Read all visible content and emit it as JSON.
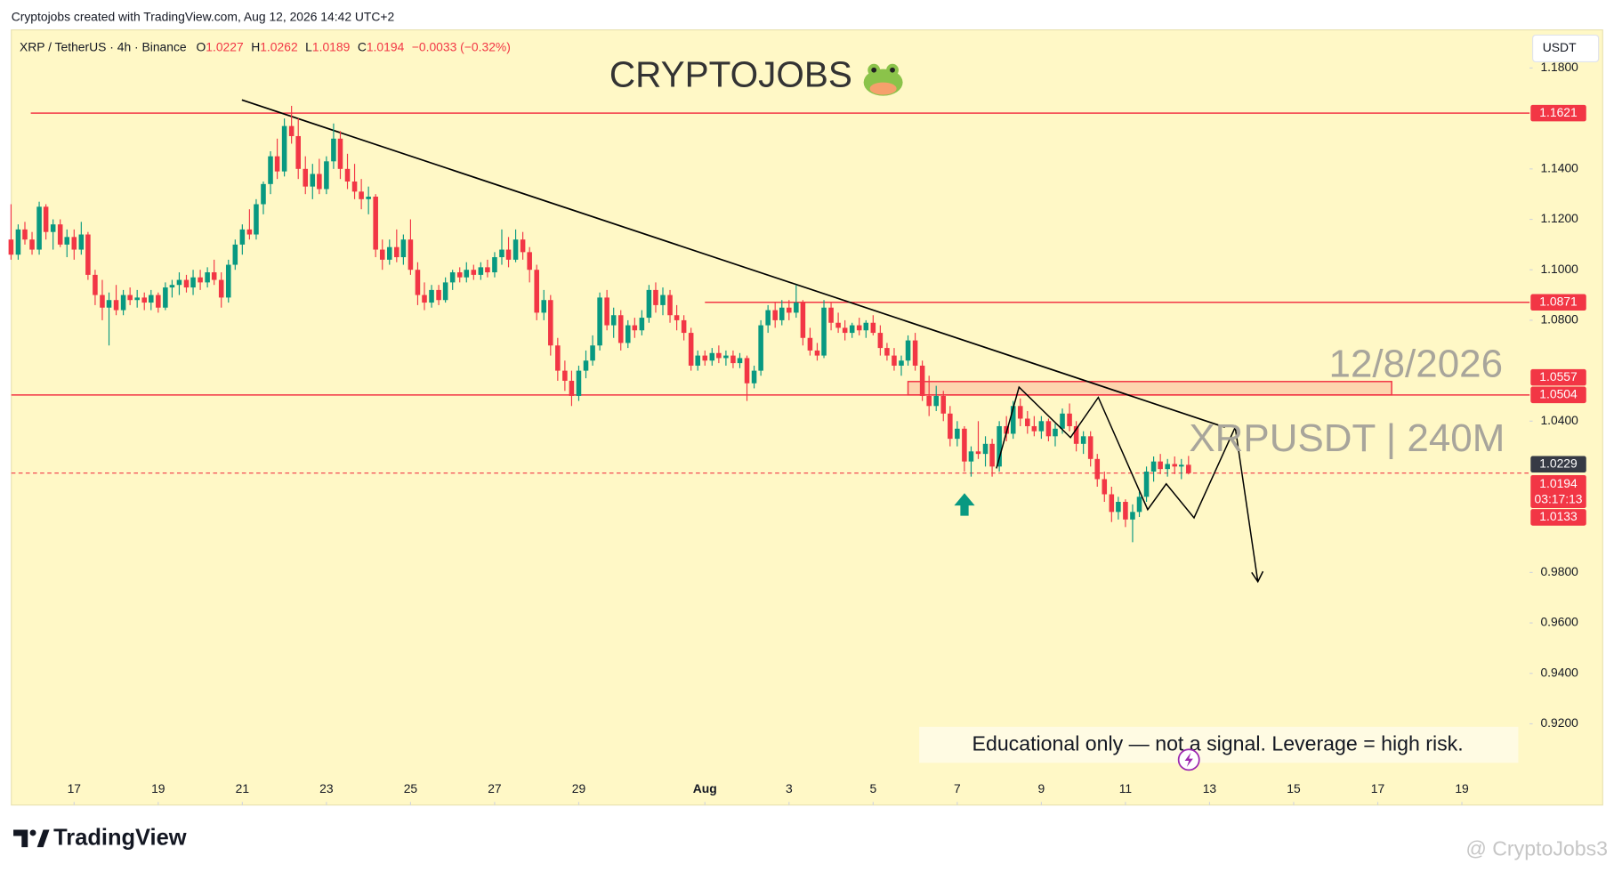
{
  "credit": "Cryptojobs created with TradingView.com, Aug 12, 2026 14:42 UTC+2",
  "brand": "TradingView",
  "watermark_user": "@ CryptoJobs3",
  "chart_data": {
    "type": "candlestick",
    "title": "CRYPTOJOBS",
    "date_watermark": "12/8/2026",
    "symbol_watermark": "XRPUSDT | 240M",
    "disclaimer": "Educational only — not a signal. Leverage  = high risk.",
    "symbol": "XRP / TetherUS · 4h · Binance",
    "ohlc_letters": [
      "O",
      "H",
      "L",
      "C"
    ],
    "change": "−0.0033 (−0.32%)",
    "currency": "USDT",
    "countdown": "03:17:13",
    "up_color": "#089981",
    "down_color": "#f23645",
    "level_color": "#f23645",
    "grid": false,
    "xlim": [
      15.507,
      51.61
    ],
    "ylim": [
      0.8878,
      1.1947
    ],
    "xticks": [
      17,
      19,
      21,
      23,
      25,
      27,
      29,
      {
        "value": 32,
        "label": "Aug"
      },
      {
        "value": 34,
        "label": "3"
      },
      {
        "value": 36,
        "label": "5"
      },
      {
        "value": 38,
        "label": "7"
      },
      {
        "value": 40,
        "label": "9"
      },
      {
        "value": 42,
        "label": "11"
      },
      {
        "value": 44,
        "label": "13"
      },
      {
        "value": 46,
        "label": "15"
      },
      {
        "value": 48,
        "label": "17"
      },
      {
        "value": 50,
        "label": "19"
      }
    ],
    "yticks": [
      {
        "value": 1.18,
        "label": "1.1800"
      },
      {
        "value": 1.14,
        "label": "1.1400"
      },
      {
        "value": 1.12,
        "label": "1.1200"
      },
      {
        "value": 1.1,
        "label": "1.1000"
      },
      {
        "value": 1.08,
        "label": "1.0800"
      },
      {
        "value": 1.04,
        "label": "1.0400"
      },
      {
        "value": 0.98,
        "label": "0.9800"
      },
      {
        "value": 0.96,
        "label": "0.9600"
      },
      {
        "value": 0.94,
        "label": "0.9400"
      },
      {
        "value": 0.92,
        "label": "0.9200"
      }
    ],
    "levels": [
      {
        "value": 1.1621,
        "start": 15.97
      },
      {
        "value": 1.0871,
        "start": 32
      },
      {
        "value": 1.0504
      }
    ],
    "zone": {
      "top": 1.0557,
      "start": 36.83,
      "end": 48.33
    },
    "markers": [
      {
        "value": 1.0229,
        "color": "#363a45"
      },
      {
        "value": 1.0133,
        "color": "#f23645"
      }
    ],
    "x": [
      15.5,
      15.67,
      15.83,
      16,
      16.17,
      16.33,
      16.5,
      16.67,
      16.83,
      17,
      17.17,
      17.33,
      17.5,
      17.67,
      17.83,
      18,
      18.17,
      18.33,
      18.5,
      18.67,
      18.83,
      19,
      19.17,
      19.33,
      19.5,
      19.67,
      19.83,
      20,
      20.17,
      20.33,
      20.5,
      20.67,
      20.83,
      21,
      21.17,
      21.33,
      21.5,
      21.67,
      21.83,
      22,
      22.17,
      22.33,
      22.5,
      22.67,
      22.83,
      23,
      23.17,
      23.33,
      23.5,
      23.67,
      23.83,
      24,
      24.17,
      24.33,
      24.5,
      24.67,
      24.83,
      25,
      25.17,
      25.33,
      25.5,
      25.67,
      25.83,
      26,
      26.17,
      26.33,
      26.5,
      26.67,
      26.83,
      27,
      27.17,
      27.33,
      27.5,
      27.67,
      27.83,
      28,
      28.17,
      28.33,
      28.5,
      28.67,
      28.83,
      29,
      29.17,
      29.33,
      29.5,
      29.67,
      29.83,
      30,
      30.17,
      30.33,
      30.5,
      30.67,
      30.83,
      31,
      31.17,
      31.33,
      31.5,
      31.67,
      31.83,
      32,
      32.17,
      32.33,
      32.5,
      32.67,
      32.83,
      33,
      33.17,
      33.33,
      33.5,
      33.67,
      33.83,
      34,
      34.17,
      34.33,
      34.5,
      34.67,
      34.83,
      35,
      35.17,
      35.33,
      35.5,
      35.67,
      35.83,
      36,
      36.17,
      36.33,
      36.5,
      36.67,
      36.83,
      37,
      37.17,
      37.33,
      37.5,
      37.67,
      37.83,
      38,
      38.17,
      38.33,
      38.5,
      38.67,
      38.83,
      39,
      39.17,
      39.33,
      39.5,
      39.67,
      39.83,
      40,
      40.17,
      40.33,
      40.5,
      40.67,
      40.83,
      41,
      41.17,
      41.33,
      41.5,
      41.67,
      41.83,
      42,
      42.17,
      42.33,
      42.5,
      42.67,
      42.83,
      43,
      43.17,
      43.33,
      43.5
    ],
    "candles": [
      [
        1.112,
        1.126,
        1.104,
        1.106
      ],
      [
        1.106,
        1.118,
        1.104,
        1.116
      ],
      [
        1.116,
        1.119,
        1.11,
        1.112
      ],
      [
        1.112,
        1.115,
        1.106,
        1.108
      ],
      [
        1.108,
        1.127,
        1.106,
        1.125
      ],
      [
        1.125,
        1.126,
        1.112,
        1.115
      ],
      [
        1.115,
        1.12,
        1.108,
        1.118
      ],
      [
        1.118,
        1.12,
        1.109,
        1.11
      ],
      [
        1.11,
        1.116,
        1.105,
        1.113
      ],
      [
        1.113,
        1.116,
        1.104,
        1.108
      ],
      [
        1.108,
        1.119,
        1.106,
        1.114
      ],
      [
        1.114,
        1.115,
        1.096,
        1.098
      ],
      [
        1.098,
        1.1,
        1.086,
        1.09
      ],
      [
        1.09,
        1.096,
        1.08,
        1.085
      ],
      [
        1.085,
        1.091,
        1.07,
        1.088
      ],
      [
        1.088,
        1.094,
        1.082,
        1.084
      ],
      [
        1.084,
        1.092,
        1.082,
        1.09
      ],
      [
        1.09,
        1.093,
        1.086,
        1.088
      ],
      [
        1.088,
        1.092,
        1.085,
        1.089
      ],
      [
        1.089,
        1.091,
        1.084,
        1.087
      ],
      [
        1.087,
        1.092,
        1.084,
        1.09
      ],
      [
        1.09,
        1.091,
        1.083,
        1.085
      ],
      [
        1.085,
        1.095,
        1.084,
        1.093
      ],
      [
        1.093,
        1.096,
        1.089,
        1.094
      ],
      [
        1.094,
        1.099,
        1.09,
        1.096
      ],
      [
        1.096,
        1.098,
        1.091,
        1.093
      ],
      [
        1.093,
        1.1,
        1.09,
        1.097
      ],
      [
        1.097,
        1.1,
        1.092,
        1.095
      ],
      [
        1.095,
        1.101,
        1.093,
        1.099
      ],
      [
        1.099,
        1.104,
        1.094,
        1.096
      ],
      [
        1.096,
        1.099,
        1.085,
        1.089
      ],
      [
        1.089,
        1.104,
        1.087,
        1.102
      ],
      [
        1.102,
        1.112,
        1.1,
        1.11
      ],
      [
        1.11,
        1.118,
        1.106,
        1.116
      ],
      [
        1.116,
        1.124,
        1.112,
        1.114
      ],
      [
        1.114,
        1.128,
        1.112,
        1.126
      ],
      [
        1.126,
        1.135,
        1.122,
        1.134
      ],
      [
        1.134,
        1.147,
        1.13,
        1.145
      ],
      [
        1.145,
        1.152,
        1.136,
        1.139
      ],
      [
        1.139,
        1.16,
        1.137,
        1.157
      ],
      [
        1.157,
        1.165,
        1.15,
        1.153
      ],
      [
        1.153,
        1.16,
        1.136,
        1.14
      ],
      [
        1.14,
        1.145,
        1.13,
        1.133
      ],
      [
        1.133,
        1.142,
        1.128,
        1.138
      ],
      [
        1.138,
        1.144,
        1.13,
        1.132
      ],
      [
        1.132,
        1.145,
        1.13,
        1.143
      ],
      [
        1.143,
        1.158,
        1.14,
        1.152
      ],
      [
        1.152,
        1.155,
        1.136,
        1.14
      ],
      [
        1.14,
        1.146,
        1.132,
        1.135
      ],
      [
        1.135,
        1.142,
        1.128,
        1.131
      ],
      [
        1.131,
        1.136,
        1.124,
        1.128
      ],
      [
        1.128,
        1.133,
        1.122,
        1.129
      ],
      [
        1.129,
        1.13,
        1.105,
        1.108
      ],
      [
        1.108,
        1.112,
        1.1,
        1.104
      ],
      [
        1.104,
        1.112,
        1.102,
        1.109
      ],
      [
        1.109,
        1.116,
        1.103,
        1.105
      ],
      [
        1.105,
        1.114,
        1.102,
        1.112
      ],
      [
        1.112,
        1.12,
        1.098,
        1.1
      ],
      [
        1.1,
        1.103,
        1.086,
        1.09
      ],
      [
        1.09,
        1.095,
        1.084,
        1.087
      ],
      [
        1.087,
        1.094,
        1.085,
        1.092
      ],
      [
        1.092,
        1.094,
        1.086,
        1.088
      ],
      [
        1.088,
        1.097,
        1.087,
        1.095
      ],
      [
        1.095,
        1.1,
        1.092,
        1.099
      ],
      [
        1.099,
        1.101,
        1.095,
        1.097
      ],
      [
        1.097,
        1.103,
        1.095,
        1.1
      ],
      [
        1.1,
        1.102,
        1.096,
        1.098
      ],
      [
        1.098,
        1.103,
        1.096,
        1.101
      ],
      [
        1.101,
        1.104,
        1.097,
        1.099
      ],
      [
        1.099,
        1.107,
        1.097,
        1.105
      ],
      [
        1.105,
        1.116,
        1.102,
        1.108
      ],
      [
        1.108,
        1.113,
        1.101,
        1.104
      ],
      [
        1.104,
        1.116,
        1.103,
        1.112
      ],
      [
        1.112,
        1.115,
        1.104,
        1.107
      ],
      [
        1.107,
        1.109,
        1.095,
        1.1
      ],
      [
        1.1,
        1.102,
        1.08,
        1.083
      ],
      [
        1.083,
        1.092,
        1.08,
        1.088
      ],
      [
        1.088,
        1.09,
        1.066,
        1.07
      ],
      [
        1.07,
        1.073,
        1.056,
        1.06
      ],
      [
        1.06,
        1.064,
        1.052,
        1.056
      ],
      [
        1.056,
        1.06,
        1.046,
        1.05
      ],
      [
        1.05,
        1.062,
        1.048,
        1.06
      ],
      [
        1.06,
        1.068,
        1.057,
        1.064
      ],
      [
        1.064,
        1.074,
        1.062,
        1.07
      ],
      [
        1.07,
        1.091,
        1.068,
        1.089
      ],
      [
        1.089,
        1.092,
        1.076,
        1.078
      ],
      [
        1.078,
        1.085,
        1.073,
        1.082
      ],
      [
        1.082,
        1.084,
        1.068,
        1.071
      ],
      [
        1.071,
        1.08,
        1.069,
        1.078
      ],
      [
        1.078,
        1.081,
        1.073,
        1.076
      ],
      [
        1.076,
        1.084,
        1.074,
        1.081
      ],
      [
        1.081,
        1.094,
        1.079,
        1.092
      ],
      [
        1.092,
        1.095,
        1.083,
        1.086
      ],
      [
        1.086,
        1.093,
        1.082,
        1.09
      ],
      [
        1.09,
        1.092,
        1.079,
        1.082
      ],
      [
        1.082,
        1.086,
        1.076,
        1.08
      ],
      [
        1.08,
        1.082,
        1.072,
        1.075
      ],
      [
        1.075,
        1.077,
        1.06,
        1.062
      ],
      [
        1.062,
        1.068,
        1.06,
        1.066
      ],
      [
        1.066,
        1.068,
        1.062,
        1.064
      ],
      [
        1.064,
        1.069,
        1.062,
        1.067
      ],
      [
        1.067,
        1.07,
        1.063,
        1.065
      ],
      [
        1.065,
        1.068,
        1.062,
        1.066
      ],
      [
        1.066,
        1.068,
        1.061,
        1.063
      ],
      [
        1.063,
        1.067,
        1.061,
        1.065
      ],
      [
        1.065,
        1.066,
        1.048,
        1.055
      ],
      [
        1.055,
        1.062,
        1.053,
        1.06
      ],
      [
        1.06,
        1.08,
        1.058,
        1.078
      ],
      [
        1.078,
        1.086,
        1.075,
        1.084
      ],
      [
        1.084,
        1.087,
        1.077,
        1.08
      ],
      [
        1.08,
        1.088,
        1.078,
        1.085
      ],
      [
        1.085,
        1.088,
        1.08,
        1.083
      ],
      [
        1.083,
        1.094,
        1.081,
        1.087
      ],
      [
        1.087,
        1.088,
        1.07,
        1.073
      ],
      [
        1.073,
        1.077,
        1.066,
        1.068
      ],
      [
        1.068,
        1.071,
        1.064,
        1.066
      ],
      [
        1.066,
        1.088,
        1.065,
        1.085
      ],
      [
        1.085,
        1.087,
        1.076,
        1.079
      ],
      [
        1.079,
        1.083,
        1.075,
        1.077
      ],
      [
        1.077,
        1.08,
        1.072,
        1.075
      ],
      [
        1.075,
        1.079,
        1.073,
        1.078
      ],
      [
        1.078,
        1.081,
        1.074,
        1.076
      ],
      [
        1.076,
        1.08,
        1.073,
        1.079
      ],
      [
        1.079,
        1.082,
        1.074,
        1.075
      ],
      [
        1.075,
        1.078,
        1.066,
        1.069
      ],
      [
        1.069,
        1.071,
        1.064,
        1.066
      ],
      [
        1.066,
        1.069,
        1.06,
        1.062
      ],
      [
        1.062,
        1.066,
        1.058,
        1.064
      ],
      [
        1.064,
        1.074,
        1.062,
        1.072
      ],
      [
        1.072,
        1.075,
        1.06,
        1.062
      ],
      [
        1.062,
        1.064,
        1.048,
        1.05
      ],
      [
        1.05,
        1.058,
        1.042,
        1.046
      ],
      [
        1.046,
        1.054,
        1.044,
        1.05
      ],
      [
        1.05,
        1.052,
        1.04,
        1.043
      ],
      [
        1.043,
        1.046,
        1.03,
        1.033
      ],
      [
        1.033,
        1.04,
        1.03,
        1.037
      ],
      [
        1.037,
        1.038,
        1.02,
        1.024
      ],
      [
        1.024,
        1.03,
        1.018,
        1.028
      ],
      [
        1.028,
        1.04,
        1.025,
        1.027
      ],
      [
        1.027,
        1.034,
        1.022,
        1.031
      ],
      [
        1.031,
        1.033,
        1.018,
        1.022
      ],
      [
        1.022,
        1.04,
        1.02,
        1.038
      ],
      [
        1.038,
        1.042,
        1.032,
        1.035
      ],
      [
        1.035,
        1.048,
        1.033,
        1.046
      ],
      [
        1.046,
        1.049,
        1.038,
        1.041
      ],
      [
        1.041,
        1.044,
        1.035,
        1.038
      ],
      [
        1.038,
        1.042,
        1.034,
        1.036
      ],
      [
        1.036,
        1.042,
        1.033,
        1.04
      ],
      [
        1.04,
        1.041,
        1.032,
        1.034
      ],
      [
        1.034,
        1.039,
        1.03,
        1.037
      ],
      [
        1.037,
        1.045,
        1.035,
        1.043
      ],
      [
        1.043,
        1.047,
        1.036,
        1.038
      ],
      [
        1.038,
        1.04,
        1.028,
        1.031
      ],
      [
        1.031,
        1.036,
        1.027,
        1.034
      ],
      [
        1.034,
        1.036,
        1.022,
        1.025
      ],
      [
        1.025,
        1.027,
        1.014,
        1.017
      ],
      [
        1.017,
        1.02,
        1.008,
        1.011
      ],
      [
        1.011,
        1.014,
        1.0,
        1.004
      ],
      [
        1.004,
        1.01,
        1.001,
        1.008
      ],
      [
        1.008,
        1.009,
        0.998,
        1.001
      ],
      [
        1.001,
        1.007,
        0.992,
        1.004
      ],
      [
        1.004,
        1.012,
        1.002,
        1.01
      ],
      [
        1.01,
        1.022,
        1.008,
        1.02
      ],
      [
        1.02,
        1.026,
        1.016,
        1.024
      ],
      [
        1.024,
        1.027,
        1.019,
        1.021
      ],
      [
        1.021,
        1.025,
        1.018,
        1.023
      ],
      [
        1.023,
        1.026,
        1.019,
        1.022
      ],
      [
        1.022,
        1.025,
        1.017,
        1.0227
      ],
      [
        1.0227,
        1.0262,
        1.0189,
        1.0194
      ]
    ]
  }
}
